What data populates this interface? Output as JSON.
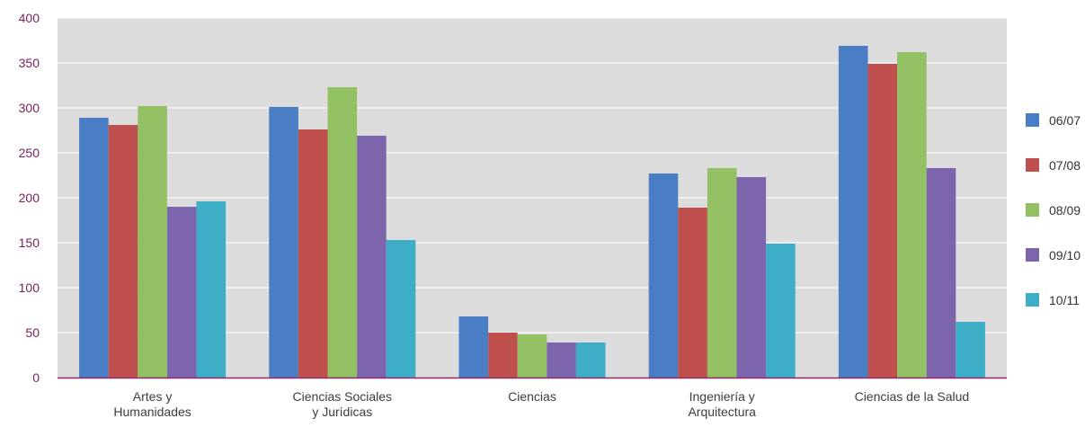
{
  "chart_data": {
    "type": "bar",
    "categories": [
      [
        "Artes y",
        "Humanidades"
      ],
      [
        "Ciencias Sociales",
        "y Jurídicas"
      ],
      [
        "Ciencias"
      ],
      [
        "Ingeniería y",
        "Arquitectura"
      ],
      [
        "Ciencias de la Salud"
      ]
    ],
    "series": [
      {
        "name": "06/07",
        "color": "#4a7ec4",
        "values": [
          289,
          301,
          68,
          227,
          369
        ]
      },
      {
        "name": "07/08",
        "color": "#c0504d",
        "values": [
          281,
          276,
          50,
          189,
          349
        ]
      },
      {
        "name": "08/09",
        "color": "#93c062",
        "values": [
          302,
          323,
          48,
          233,
          362
        ]
      },
      {
        "name": "09/10",
        "color": "#7d65ad",
        "values": [
          190,
          269,
          39,
          223,
          233
        ]
      },
      {
        "name": "10/11",
        "color": "#3eaec6",
        "values": [
          196,
          153,
          39,
          149,
          62
        ]
      }
    ],
    "yticks": [
      "0",
      "50",
      "100",
      "150",
      "200",
      "250",
      "300",
      "350",
      "400"
    ],
    "ylim": [
      0,
      400
    ],
    "grid": true,
    "legend_position": "right",
    "colors": {
      "plot_background": "#dcdcdc",
      "gridline": "#ffffff",
      "axis_line": "#8a2a6a",
      "tick_text": "#7a1f5c",
      "category_text": "#3c3c3c",
      "legend_text": "#333333"
    }
  }
}
